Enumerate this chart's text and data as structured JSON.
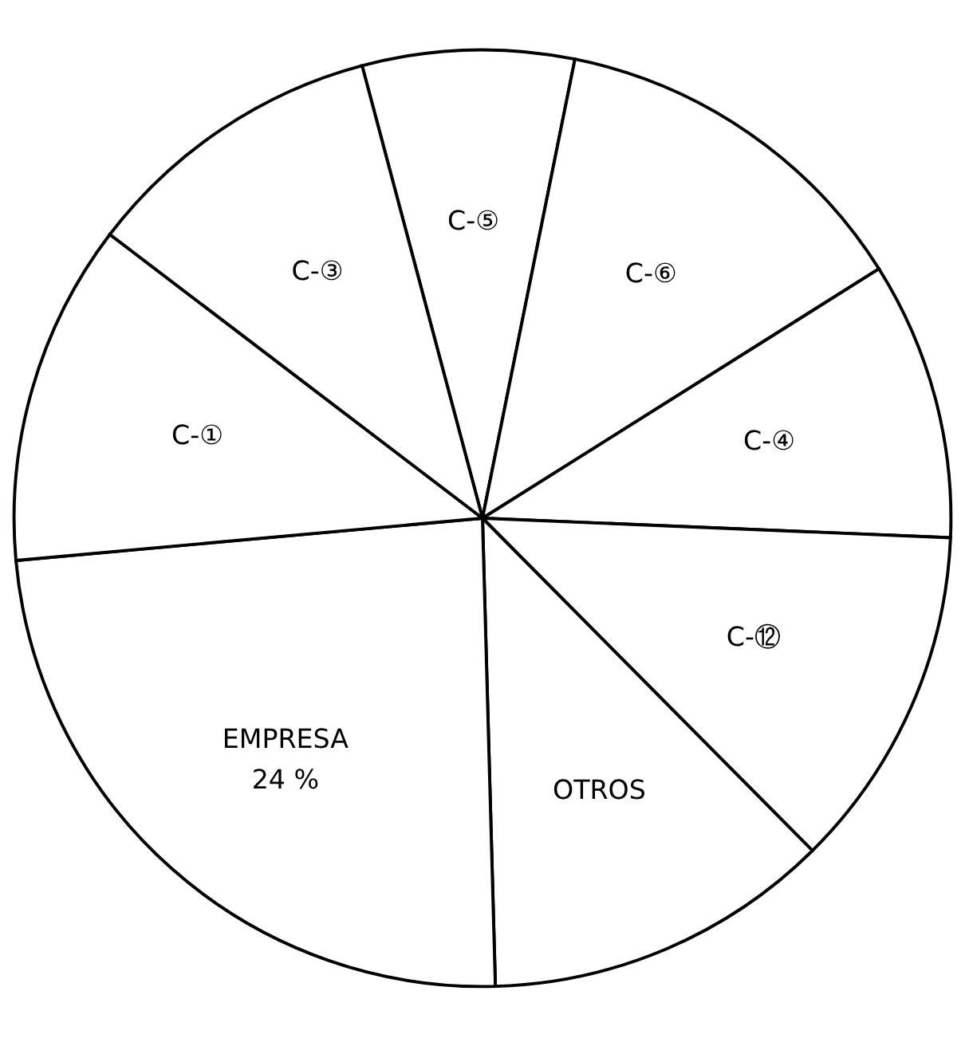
{
  "chart_data": {
    "type": "pie",
    "categories": [
      "C-⑤",
      "C-⑥",
      "C-④",
      "C-⑫",
      "OTROS",
      "EMPRESA",
      "C-①",
      "C-③"
    ],
    "values": [
      7.3,
      12.9,
      9.6,
      11.9,
      12.0,
      24,
      11.8,
      10.5
    ],
    "value_labels": [
      null,
      null,
      null,
      null,
      null,
      "24 %",
      null,
      null
    ],
    "colors": [
      "#ffffff",
      "#ffffff",
      "#ffffff",
      "#ffffff",
      "#ffffff",
      "#ffffff",
      "#ffffff",
      "#ffffff"
    ],
    "legend": false
  }
}
